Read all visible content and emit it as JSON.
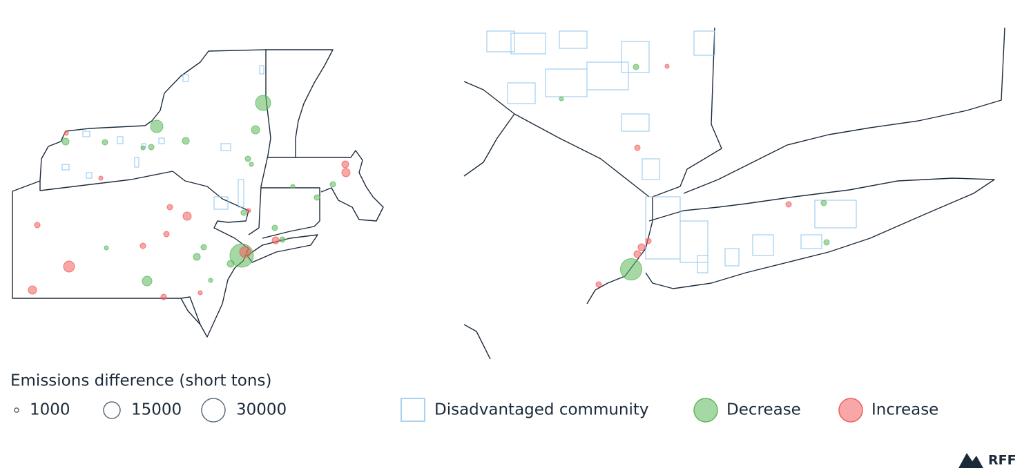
{
  "chart_data": {
    "type": "bubble-map",
    "size_legend_title": "Emissions difference (short tons)",
    "size_legend": [
      1000,
      15000,
      30000
    ],
    "area_legend": {
      "name": "Disadvantaged community",
      "color": "#8cc4ec"
    },
    "series": [
      {
        "name": "Decrease",
        "color": "#5cb85c",
        "values": [
          30000,
          12500,
          8400,
          5100,
          3700,
          2600,
          2600,
          1660,
          1660,
          930,
          1660,
          930,
          2600,
          1660,
          930,
          2600,
          1660,
          1660,
          1660,
          1660,
          930,
          930,
          1660,
          25000,
          1660,
          930,
          1660,
          1660
        ]
      },
      {
        "name": "Increase",
        "color": "#f25c5c",
        "values": [
          6600,
          3700,
          3700,
          3700,
          2600,
          1660,
          1660,
          1660,
          1660,
          1660,
          930,
          930,
          930,
          2600,
          6600,
          930,
          930,
          1660,
          1660,
          2600,
          2600,
          1660,
          1660
        ]
      }
    ],
    "brand": "RFF"
  }
}
